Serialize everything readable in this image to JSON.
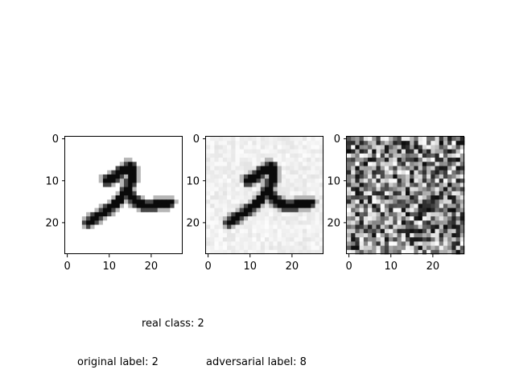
{
  "panels": [
    {
      "id": "original-image",
      "image": "handwritten-digit-2-clean",
      "x_ticks": [
        "0",
        "10",
        "20"
      ],
      "y_ticks": [
        "0",
        "10",
        "20"
      ]
    },
    {
      "id": "adversarial-image",
      "image": "handwritten-digit-2-with-light-noise",
      "x_ticks": [
        "0",
        "10",
        "20"
      ],
      "y_ticks": [
        "0",
        "10",
        "20"
      ]
    },
    {
      "id": "perturbation-image",
      "image": "random-noise-perturbation",
      "x_ticks": [
        "0",
        "10",
        "20"
      ],
      "y_ticks": [
        "0",
        "10",
        "20"
      ]
    }
  ],
  "captions": {
    "real_class": "real class: 2",
    "original_label": "original label: 2",
    "adversarial_label": "adversarial label: 8"
  }
}
